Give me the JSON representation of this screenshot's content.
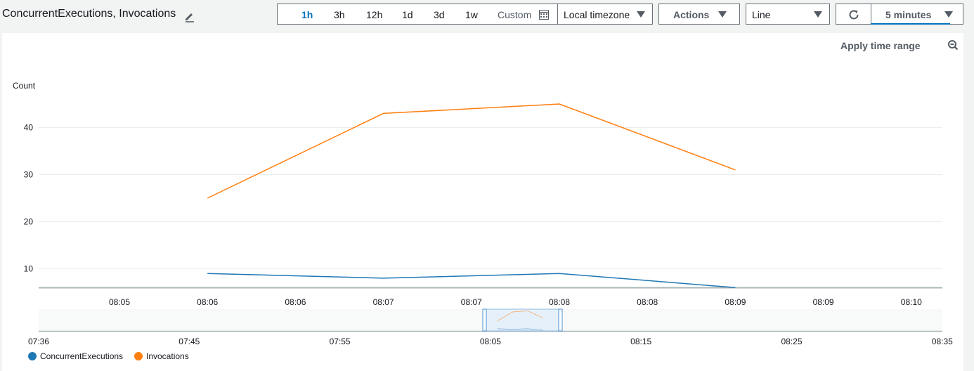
{
  "widget": {
    "title": "ConcurrentExecutions, Invocations"
  },
  "toolbar": {
    "ranges": [
      "1h",
      "3h",
      "12h",
      "1d",
      "3d",
      "1w"
    ],
    "active_range": "1h",
    "custom_label": "Custom",
    "timezone_label": "Local timezone",
    "actions_label": "Actions",
    "view_label": "Line",
    "interval_label": "5 minutes"
  },
  "panel": {
    "apply_label": "Apply time range"
  },
  "colors": {
    "ConcurrentExecutions": "#1f77b4",
    "Invocations": "#ff7f0e",
    "accent": "#0073bb"
  },
  "icons": {
    "edit": "pencil-icon",
    "calendar": "calendar-icon",
    "refresh": "refresh-icon",
    "zoom": "zoom-out-icon",
    "caret": "caret-down-icon"
  },
  "chart_data": {
    "type": "line",
    "ylabel": "Count",
    "yticks": [
      10,
      20,
      30,
      40
    ],
    "ylim": [
      6,
      50
    ],
    "x_tick_labels": [
      "08:05",
      "08:06",
      "08:06",
      "08:07",
      "08:07",
      "08:08",
      "08:08",
      "08:09",
      "08:09",
      "08:10"
    ],
    "x_points": [
      "08:06",
      "08:07",
      "08:08",
      "08:09"
    ],
    "series": [
      {
        "name": "ConcurrentExecutions",
        "values": [
          9,
          8,
          9,
          6
        ]
      },
      {
        "name": "Invocations",
        "values": [
          25,
          43,
          45,
          31
        ]
      }
    ],
    "overview_tick_labels": [
      "07:36",
      "07:45",
      "07:55",
      "08:05",
      "08:15",
      "08:25",
      "08:35"
    ],
    "grid": true,
    "legend": "bottom-left"
  }
}
